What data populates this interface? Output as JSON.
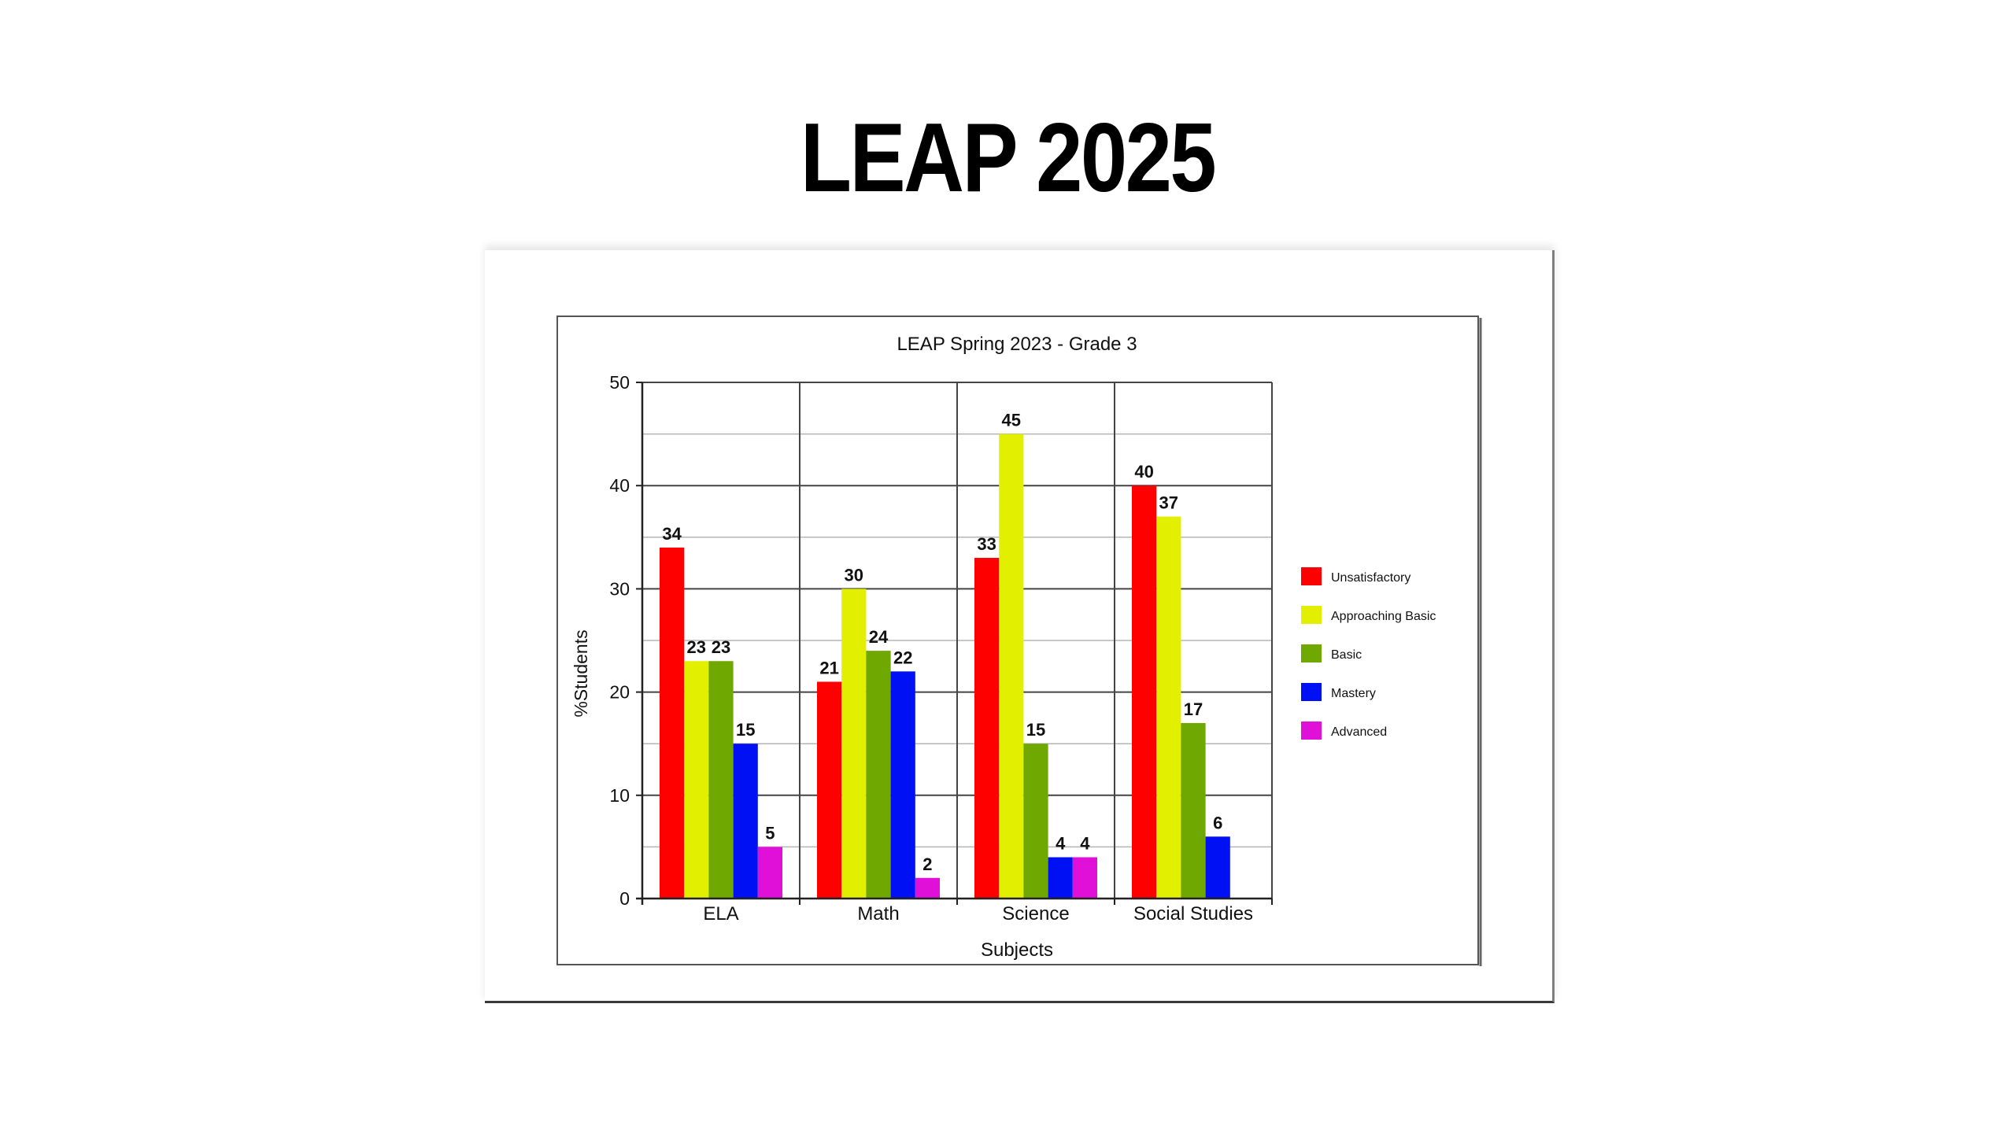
{
  "slide": {
    "title": "LEAP 2025"
  },
  "chart_data": {
    "type": "bar",
    "title": "LEAP Spring 2023 - Grade 3",
    "xlabel": "Subjects",
    "ylabel": "%Students",
    "ylim": [
      0,
      50
    ],
    "yticks": [
      0,
      10,
      20,
      30,
      40,
      50
    ],
    "grid": true,
    "legend_position": "right",
    "categories": [
      "ELA",
      "Math",
      "Science",
      "Social Studies"
    ],
    "series": [
      {
        "name": "Unsatisfactory",
        "color": "#ff0000",
        "values": [
          34,
          21,
          33,
          40
        ]
      },
      {
        "name": "Approaching Basic",
        "color": "#e2f000",
        "values": [
          23,
          30,
          45,
          37
        ]
      },
      {
        "name": "Basic",
        "color": "#6fa800",
        "values": [
          23,
          24,
          15,
          17
        ]
      },
      {
        "name": "Mastery",
        "color": "#0010f5",
        "values": [
          15,
          22,
          4,
          6
        ]
      },
      {
        "name": "Advanced",
        "color": "#e010d8",
        "values": [
          5,
          2,
          4,
          null
        ]
      }
    ]
  }
}
